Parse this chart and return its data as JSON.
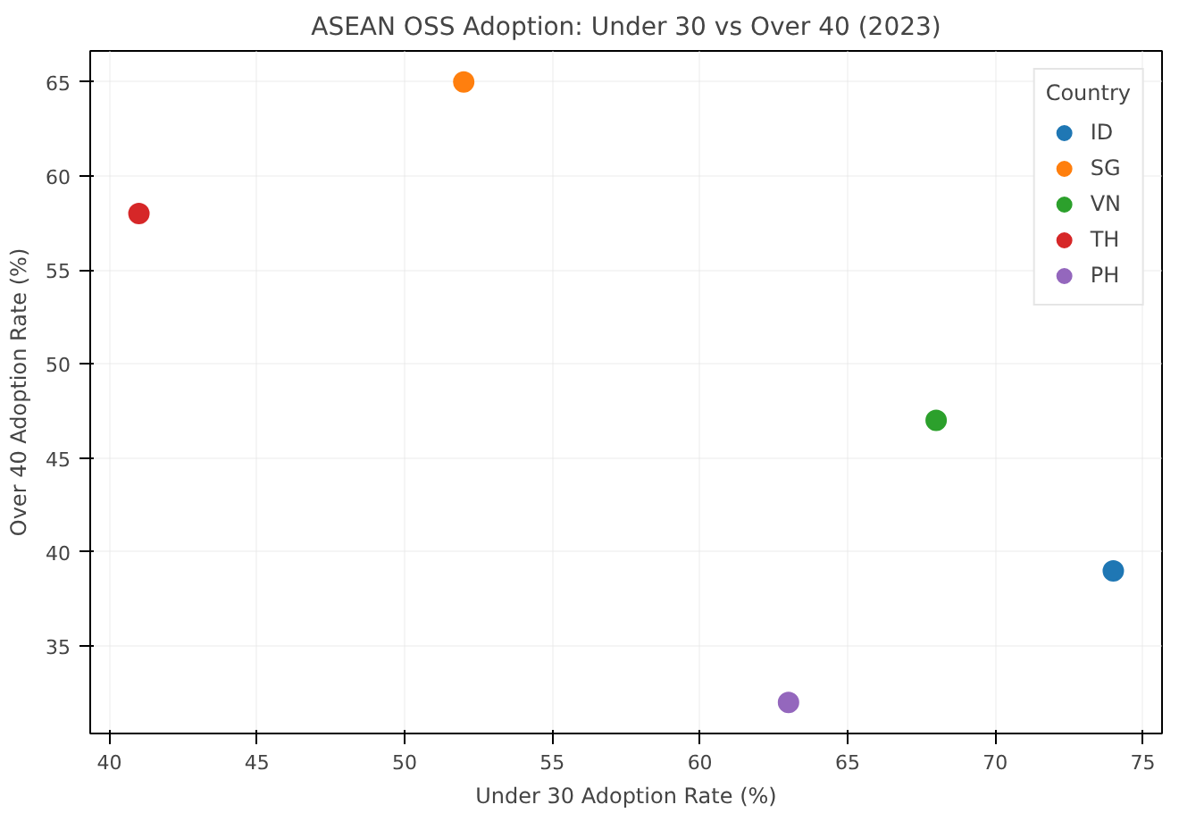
{
  "chart_data": {
    "type": "scatter",
    "title": "ASEAN OSS Adoption: Under 30 vs Over 40 (2023)",
    "xlabel": "Under 30 Adoption Rate (%)",
    "ylabel": "Over 40 Adoption Rate (%)",
    "legend_title": "Country",
    "series": [
      {
        "name": "ID",
        "color": "#1f77b4",
        "x": [
          74
        ],
        "values": [
          39
        ]
      },
      {
        "name": "SG",
        "color": "#ff7f0e",
        "x": [
          52
        ],
        "values": [
          65
        ]
      },
      {
        "name": "VN",
        "color": "#2ca02c",
        "x": [
          68
        ],
        "values": [
          47
        ]
      },
      {
        "name": "TH",
        "color": "#d62728",
        "x": [
          41
        ],
        "values": [
          58
        ]
      },
      {
        "name": "PH",
        "color": "#9467bd",
        "x": [
          63
        ],
        "values": [
          32
        ]
      }
    ],
    "xlim": [
      39.35,
      75.65
    ],
    "ylim": [
      30.35,
      66.65
    ],
    "xticks": [
      40,
      45,
      50,
      55,
      60,
      65,
      70,
      75
    ],
    "yticks": [
      35,
      40,
      45,
      50,
      55,
      60,
      65
    ],
    "grid": true,
    "legend": "top right",
    "marker": "circle"
  }
}
